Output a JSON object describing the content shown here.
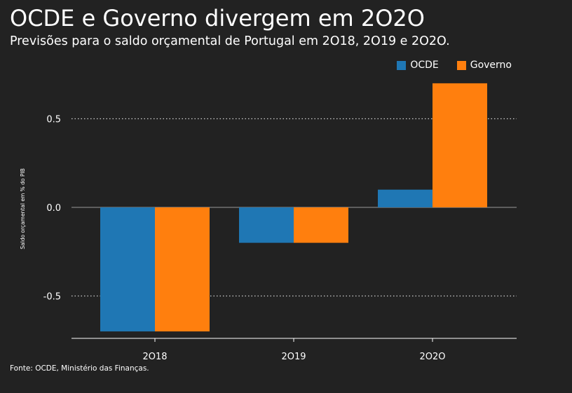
{
  "title": "OCDE e Governo divergem em 2O2O",
  "subtitle": "Previsões para o saldo orçamental de Portugal em 2O18, 2O19 e 2O2O.",
  "source": "Fonte: OCDE, Ministério das Finanças.",
  "colors": {
    "background": "#222222",
    "ocde": "#1f77b4",
    "governo": "#ff7f0e",
    "text": "#ffffff"
  },
  "chart_data": {
    "type": "bar",
    "title": "OCDE e Governo divergem em 2O2O",
    "subtitle": "Previsões para o saldo orçamental de Portugal em 2O18, 2O19 e 2O2O.",
    "xlabel": "",
    "ylabel": "Saldo orçamental em % do PIB",
    "categories": [
      "2O18",
      "2O19",
      "2O2O"
    ],
    "series": [
      {
        "name": "OCDE",
        "values": [
          -0.7,
          -0.2,
          0.1
        ],
        "color": "#1f77b4"
      },
      {
        "name": "Governo",
        "values": [
          -0.7,
          -0.2,
          0.7
        ],
        "color": "#ff7f0e"
      }
    ],
    "ylim": [
      -0.75,
      0.75
    ],
    "yticks": [
      -0.5,
      0.0,
      0.5
    ],
    "ytick_labels": [
      "-0.5",
      "0.0",
      "0.5"
    ],
    "grid": "horizontal dotted",
    "legend_position": "top-right"
  }
}
